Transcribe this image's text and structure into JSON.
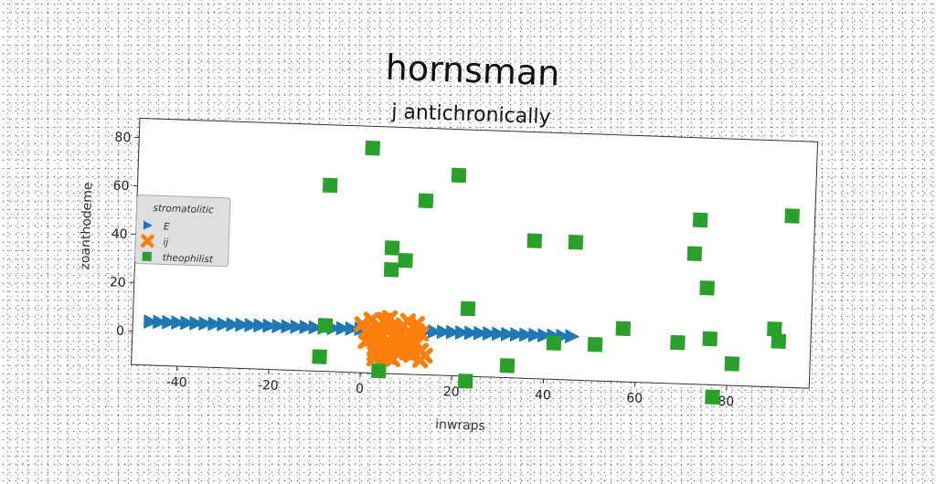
{
  "chart_data": {
    "type": "scatter",
    "title": "hornsman",
    "subtitle": "j antichronically",
    "xlabel": "inwraps",
    "ylabel": "zoanthodeme",
    "xlim": [
      -50,
      98
    ],
    "ylim": [
      -14,
      88
    ],
    "x_ticks": [
      -40,
      -20,
      0,
      20,
      40,
      60,
      80
    ],
    "y_ticks": [
      0,
      20,
      40,
      60,
      80
    ],
    "grid": false,
    "legend": {
      "title": "stromatolitic",
      "placement": "center-left",
      "entries": [
        "E",
        "ij",
        "theophilist"
      ]
    },
    "series": [
      {
        "name": "E",
        "marker": "triangle-right",
        "color": "#1f77b4",
        "x": [
          -46,
          -44,
          -42,
          -40,
          -38,
          -36,
          -34,
          -32,
          -30,
          -28,
          -26,
          -24,
          -22,
          -20,
          -18,
          -16,
          -14,
          -12,
          -10,
          -8,
          -6,
          -4,
          -2,
          0,
          2,
          4,
          6,
          8,
          10,
          12,
          14,
          16,
          18,
          20,
          22,
          24,
          26,
          28,
          30,
          32,
          34,
          36,
          38,
          40,
          42,
          44,
          46
        ],
        "y": [
          4,
          4,
          4,
          4,
          4,
          4,
          4,
          4,
          4,
          4,
          4,
          4,
          4,
          4,
          4,
          4,
          4,
          4,
          4,
          4,
          4,
          4,
          4,
          4,
          4,
          4,
          4,
          4,
          4,
          4,
          4,
          4,
          4,
          4,
          4,
          4,
          4,
          4,
          4,
          4,
          4,
          4,
          4,
          4,
          4,
          4,
          4
        ]
      },
      {
        "name": "ij",
        "marker": "x",
        "color": "#ff7f0e",
        "x": [
          0,
          1,
          2,
          3,
          4,
          5,
          6,
          7,
          8,
          9,
          10,
          11,
          12,
          13,
          1,
          2,
          3,
          4,
          5,
          6,
          7,
          8,
          9,
          10,
          11,
          12,
          2,
          3,
          4,
          5,
          6,
          7,
          8,
          9,
          10,
          11,
          12,
          13,
          14,
          3,
          5,
          7,
          9,
          11,
          13
        ],
        "y": [
          6,
          3,
          8,
          0,
          5,
          -2,
          9,
          2,
          -5,
          6,
          1,
          -3,
          7,
          -8,
          -1,
          4,
          -6,
          1,
          7,
          -3,
          5,
          -4,
          2,
          8,
          -1,
          4,
          0,
          -4,
          3,
          8,
          -7,
          1,
          -2,
          6,
          -5,
          2,
          -1,
          3,
          -6,
          -8,
          -7,
          -8,
          -3,
          -6,
          -4
        ]
      },
      {
        "name": "theophilist",
        "marker": "square",
        "color": "#2ca02c",
        "x": [
          1,
          20,
          -8,
          13,
          93,
          73,
          72,
          37,
          46,
          6,
          9,
          6,
          75,
          -8,
          23,
          90,
          91,
          57,
          69,
          76,
          51,
          42,
          81,
          77,
          -9,
          4,
          23,
          32
        ],
        "y": [
          79,
          69,
          63,
          58,
          57,
          54,
          40,
          43,
          43,
          38,
          33,
          29,
          26,
          5,
          14,
          10,
          5,
          8,
          3,
          5,
          1,
          1,
          -5,
          -19,
          -8,
          -13,
          -16,
          -9
        ]
      }
    ]
  }
}
